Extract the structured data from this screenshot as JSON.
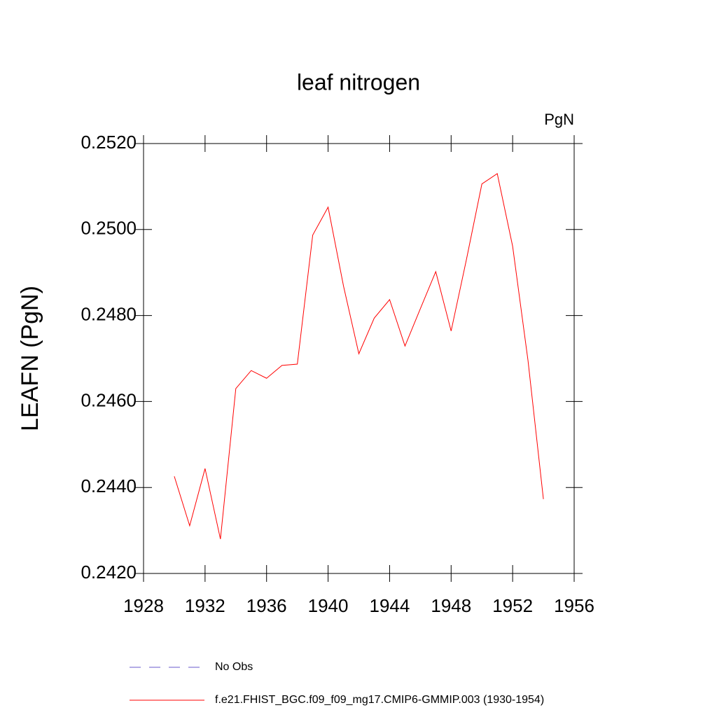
{
  "chart_data": {
    "type": "line",
    "title": "leaf nitrogen",
    "units": "PgN",
    "y_label": "LEAFN  (PgN)",
    "x": [
      1930,
      1931,
      1932,
      1933,
      1934,
      1935,
      1936,
      1937,
      1938,
      1939,
      1940,
      1941,
      1942,
      1943,
      1944,
      1945,
      1946,
      1947,
      1948,
      1949,
      1950,
      1951,
      1952,
      1953,
      1954
    ],
    "series": [
      {
        "name": "No Obs",
        "color": "#6a5acd",
        "dash": true,
        "values": [
          null,
          null,
          null,
          null,
          null,
          null,
          null,
          null,
          null,
          null,
          null,
          null,
          null,
          null,
          null,
          null,
          null,
          null,
          null,
          null,
          null,
          null,
          null,
          null,
          null
        ]
      },
      {
        "name": "f.e21.FHIST_BGC.f09_f09_mg17.CMIP6-GMMIP.003 (1930-1954)",
        "color": "#ff0000",
        "dash": false,
        "values": [
          0.24426,
          0.24311,
          0.24444,
          0.2428,
          0.2463,
          0.24672,
          0.24654,
          0.24684,
          0.24687,
          0.24987,
          0.25052,
          0.24869,
          0.24711,
          0.24794,
          0.24837,
          0.24729,
          0.24816,
          0.24902,
          0.24764,
          0.24931,
          0.25106,
          0.2513,
          0.24961,
          0.24695,
          0.24373
        ]
      }
    ],
    "xlim": [
      1928,
      1956
    ],
    "xticks": [
      1928,
      1932,
      1936,
      1940,
      1944,
      1948,
      1952,
      1956
    ],
    "ylim": [
      0.242,
      0.252
    ],
    "yticks": [
      {
        "value": 0.242,
        "label": "0.2420"
      },
      {
        "value": 0.244,
        "label": "0.2440"
      },
      {
        "value": 0.246,
        "label": "0.2460"
      },
      {
        "value": 0.248,
        "label": "0.2480"
      },
      {
        "value": 0.25,
        "label": "0.2500"
      },
      {
        "value": 0.252,
        "label": "0.2520"
      }
    ]
  }
}
